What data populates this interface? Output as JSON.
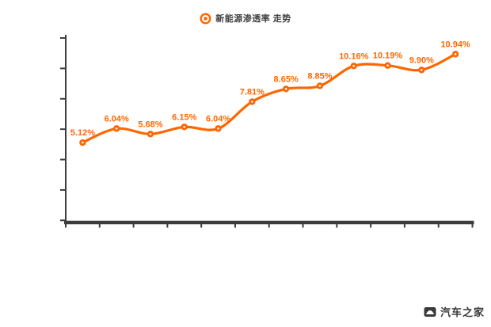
{
  "colors": {
    "accent": "#FF6600",
    "axis": "#3C3C3C",
    "legend_text": "#3F3F3F",
    "watermark_text": "#3A3A3A",
    "background": "#FFFFFF"
  },
  "legend": {
    "label": "新能源渗透率 走势",
    "icon": "circle-dot-icon"
  },
  "watermark": {
    "text": "汽车之家",
    "icon": "autohome-logo-icon"
  },
  "chart_data": {
    "type": "line",
    "title": "",
    "xlabel": "",
    "ylabel": "",
    "smooth": true,
    "grid": false,
    "legend_position": "top-center",
    "ylim": [
      0,
      12
    ],
    "y_tick_interval": 2,
    "y_tick_values": [
      0,
      2,
      4,
      6,
      8,
      10,
      12
    ],
    "y_tick_labels_visible": false,
    "x_tick_count": 13,
    "x_tick_labels_visible": false,
    "categories": [
      "",
      "",
      "",
      "",
      "",
      "",
      "",
      "",
      "",
      "",
      "",
      ""
    ],
    "series": [
      {
        "name": "新能源渗透率 走势",
        "color": "#FF6600",
        "marker": "circle-with-white-center",
        "values": [
          5.12,
          6.04,
          5.68,
          6.15,
          6.04,
          7.81,
          8.65,
          8.85,
          10.16,
          10.19,
          9.9,
          10.94
        ],
        "point_labels": [
          "5.12%",
          "6.04%",
          "5.68%",
          "6.15%",
          "6.04%",
          "7.81%",
          "8.65%",
          "8.85%",
          "10.16%",
          "10.19%",
          "9.90%",
          "10.94%"
        ]
      }
    ]
  }
}
